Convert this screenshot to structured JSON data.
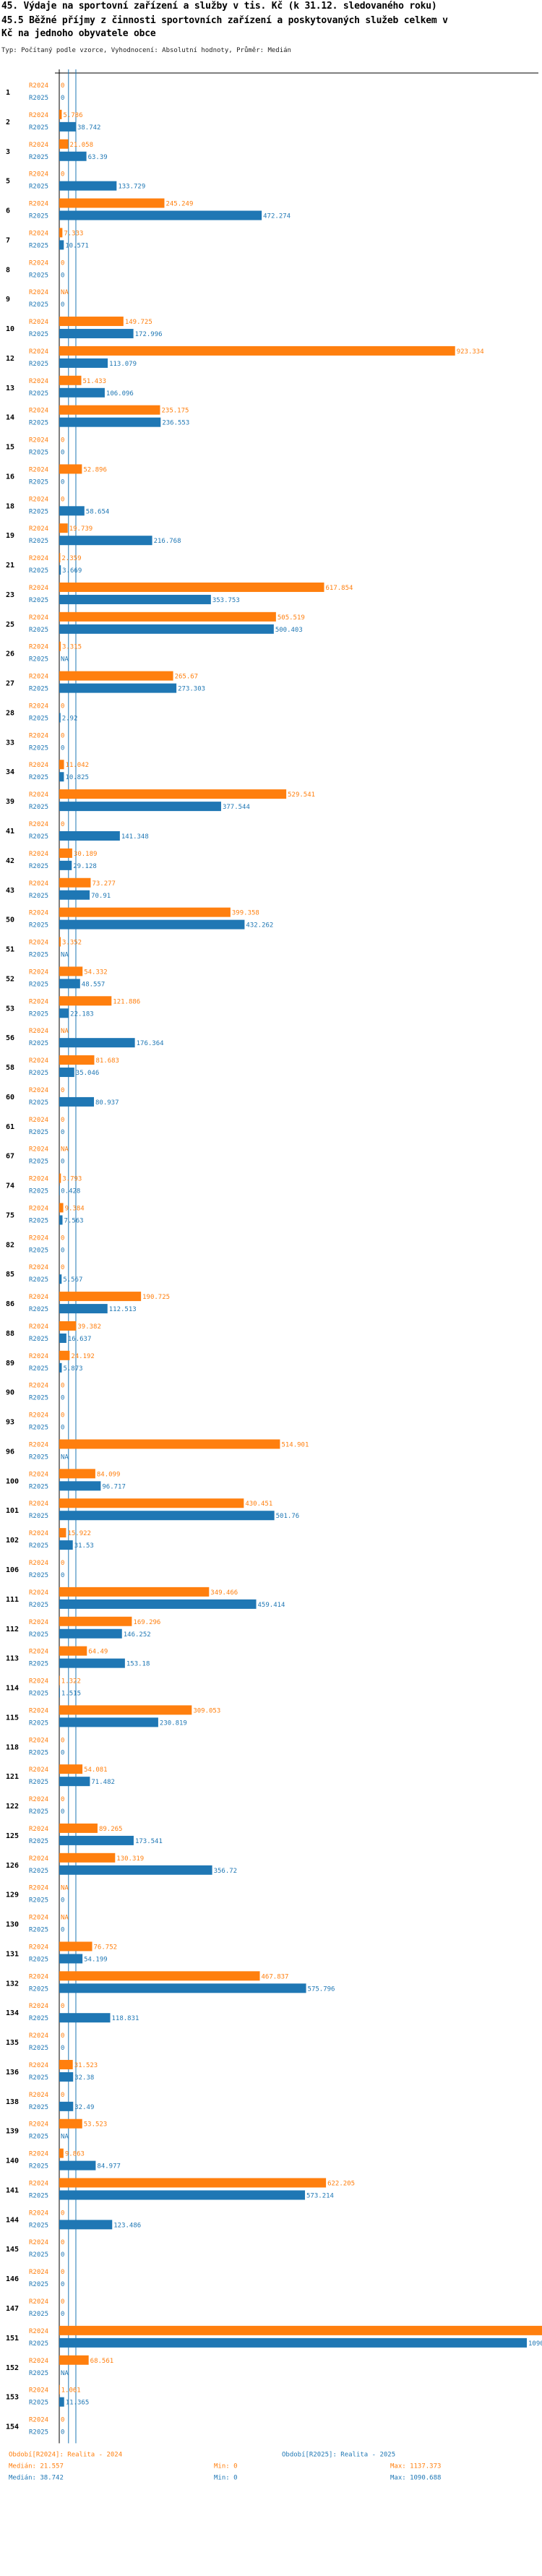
{
  "title_line1": "45. Výdaje na sportovní zařízení a služby v tis. Kč (k 31.12. sledovaného roku)",
  "title_line2": "45.5 Běžné příjmy z činnosti sportovních zařízení a poskytovaných služeb celkem v",
  "title_line3": "Kč na jednoho obyvatele obce",
  "subtitle": "Typ: Počítaný podle vzorce, Vyhodnocení: Absolutní hodnoty, Průměr: Medián",
  "legend": {
    "s1": "Období[R2024]: Realita - 2024",
    "s2": "Období[R2025]: Realita - 2025",
    "s1_median": "Medián: 21.557",
    "s1_min": "Min: 0",
    "s1_max": "Max: 1137.373",
    "s2_median": "Medián: 38.742",
    "s2_min": "Min: 0",
    "s2_max": "Max: 1090.688"
  },
  "colors": {
    "r2024": "#ff7f0e",
    "r2025": "#1f77b4",
    "axis": "#000000",
    "median": "#1f77b4"
  },
  "chart_data": {
    "type": "bar",
    "orientation": "horizontal",
    "series_names": [
      "R2024",
      "R2025"
    ],
    "xlim": [
      0,
      1150
    ],
    "medians": {
      "R2024": 21.557,
      "R2025": 38.742
    },
    "rows": [
      {
        "id": "1",
        "R2024": "0",
        "R2025": "0"
      },
      {
        "id": "2",
        "R2024": "5.786",
        "R2025": "38.742"
      },
      {
        "id": "3",
        "R2024": "21.058",
        "R2025": "63.39"
      },
      {
        "id": "5",
        "R2024": "0",
        "R2025": "133.729"
      },
      {
        "id": "6",
        "R2024": "245.249",
        "R2025": "472.274"
      },
      {
        "id": "7",
        "R2024": "7.333",
        "R2025": "10.571"
      },
      {
        "id": "8",
        "R2024": "0",
        "R2025": "0"
      },
      {
        "id": "9",
        "R2024": "NA",
        "R2025": "0"
      },
      {
        "id": "10",
        "R2024": "149.725",
        "R2025": "172.996"
      },
      {
        "id": "12",
        "R2024": "923.334",
        "R2025": "113.079"
      },
      {
        "id": "13",
        "R2024": "51.433",
        "R2025": "106.096"
      },
      {
        "id": "14",
        "R2024": "235.175",
        "R2025": "236.553"
      },
      {
        "id": "15",
        "R2024": "0",
        "R2025": "0"
      },
      {
        "id": "16",
        "R2024": "52.896",
        "R2025": "0"
      },
      {
        "id": "18",
        "R2024": "0",
        "R2025": "58.654"
      },
      {
        "id": "19",
        "R2024": "19.739",
        "R2025": "216.768"
      },
      {
        "id": "21",
        "R2024": "2.359",
        "R2025": "3.669"
      },
      {
        "id": "23",
        "R2024": "617.854",
        "R2025": "353.753"
      },
      {
        "id": "25",
        "R2024": "505.519",
        "R2025": "500.403"
      },
      {
        "id": "26",
        "R2024": "3.315",
        "R2025": "NA"
      },
      {
        "id": "27",
        "R2024": "265.67",
        "R2025": "273.303"
      },
      {
        "id": "28",
        "R2024": "0",
        "R2025": "2.92"
      },
      {
        "id": "33",
        "R2024": "0",
        "R2025": "0"
      },
      {
        "id": "34",
        "R2024": "11.042",
        "R2025": "10.825"
      },
      {
        "id": "39",
        "R2024": "529.541",
        "R2025": "377.544"
      },
      {
        "id": "41",
        "R2024": "0",
        "R2025": "141.348"
      },
      {
        "id": "42",
        "R2024": "30.189",
        "R2025": "29.128"
      },
      {
        "id": "43",
        "R2024": "73.277",
        "R2025": "70.91"
      },
      {
        "id": "50",
        "R2024": "399.358",
        "R2025": "432.262"
      },
      {
        "id": "51",
        "R2024": "3.352",
        "R2025": "NA"
      },
      {
        "id": "52",
        "R2024": "54.332",
        "R2025": "48.557"
      },
      {
        "id": "53",
        "R2024": "121.886",
        "R2025": "22.183"
      },
      {
        "id": "56",
        "R2024": "NA",
        "R2025": "176.364"
      },
      {
        "id": "58",
        "R2024": "81.683",
        "R2025": "35.046"
      },
      {
        "id": "60",
        "R2024": "0",
        "R2025": "80.937"
      },
      {
        "id": "61",
        "R2024": "0",
        "R2025": "0"
      },
      {
        "id": "67",
        "R2024": "NA",
        "R2025": "0"
      },
      {
        "id": "74",
        "R2024": "3.793",
        "R2025": "0.428"
      },
      {
        "id": "75",
        "R2024": "9.384",
        "R2025": "7.563"
      },
      {
        "id": "82",
        "R2024": "0",
        "R2025": "0"
      },
      {
        "id": "85",
        "R2024": "0",
        "R2025": "5.567"
      },
      {
        "id": "86",
        "R2024": "190.725",
        "R2025": "112.513"
      },
      {
        "id": "88",
        "R2024": "39.382",
        "R2025": "16.637"
      },
      {
        "id": "89",
        "R2024": "24.192",
        "R2025": "5.873"
      },
      {
        "id": "90",
        "R2024": "0",
        "R2025": "0"
      },
      {
        "id": "93",
        "R2024": "0",
        "R2025": "0"
      },
      {
        "id": "96",
        "R2024": "514.901",
        "R2025": "NA"
      },
      {
        "id": "100",
        "R2024": "84.099",
        "R2025": "96.717"
      },
      {
        "id": "101",
        "R2024": "430.451",
        "R2025": "501.76"
      },
      {
        "id": "102",
        "R2024": "15.922",
        "R2025": "31.53"
      },
      {
        "id": "106",
        "R2024": "0",
        "R2025": "0"
      },
      {
        "id": "111",
        "R2024": "349.466",
        "R2025": "459.414"
      },
      {
        "id": "112",
        "R2024": "169.296",
        "R2025": "146.252"
      },
      {
        "id": "113",
        "R2024": "64.49",
        "R2025": "153.18"
      },
      {
        "id": "114",
        "R2024": "1.322",
        "R2025": "1.515"
      },
      {
        "id": "115",
        "R2024": "309.053",
        "R2025": "230.819"
      },
      {
        "id": "118",
        "R2024": "0",
        "R2025": "0"
      },
      {
        "id": "121",
        "R2024": "54.081",
        "R2025": "71.482"
      },
      {
        "id": "122",
        "R2024": "0",
        "R2025": "0"
      },
      {
        "id": "125",
        "R2024": "89.265",
        "R2025": "173.541"
      },
      {
        "id": "126",
        "R2024": "130.319",
        "R2025": "356.72"
      },
      {
        "id": "129",
        "R2024": "NA",
        "R2025": "0"
      },
      {
        "id": "130",
        "R2024": "NA",
        "R2025": "0"
      },
      {
        "id": "131",
        "R2024": "76.752",
        "R2025": "54.199"
      },
      {
        "id": "132",
        "R2024": "467.837",
        "R2025": "575.796"
      },
      {
        "id": "134",
        "R2024": "0",
        "R2025": "118.831"
      },
      {
        "id": "135",
        "R2024": "0",
        "R2025": "0"
      },
      {
        "id": "136",
        "R2024": "31.523",
        "R2025": "32.38"
      },
      {
        "id": "138",
        "R2024": "0",
        "R2025": "32.49"
      },
      {
        "id": "139",
        "R2024": "53.523",
        "R2025": "NA"
      },
      {
        "id": "140",
        "R2024": "9.863",
        "R2025": "84.977"
      },
      {
        "id": "141",
        "R2024": "622.205",
        "R2025": "573.214"
      },
      {
        "id": "144",
        "R2024": "0",
        "R2025": "123.486"
      },
      {
        "id": "145",
        "R2024": "0",
        "R2025": "0"
      },
      {
        "id": "146",
        "R2024": "0",
        "R2025": "0"
      },
      {
        "id": "147",
        "R2024": "0",
        "R2025": "0"
      },
      {
        "id": "151",
        "R2024": "1137.373",
        "R2025": "1090.688"
      },
      {
        "id": "152",
        "R2024": "68.561",
        "R2025": "NA"
      },
      {
        "id": "153",
        "R2024": "1.061",
        "R2025": "11.365"
      },
      {
        "id": "154",
        "R2024": "0",
        "R2025": "0"
      }
    ]
  }
}
